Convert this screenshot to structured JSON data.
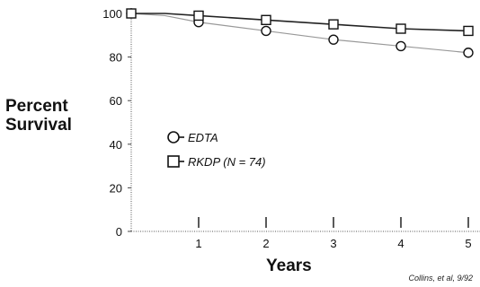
{
  "chart_data": {
    "type": "line",
    "title": "",
    "xlabel": "Years",
    "ylabel": "Percent Survival",
    "xlim": [
      0,
      5.5
    ],
    "ylim": [
      0,
      100
    ],
    "x_ticks": [
      1,
      2,
      3,
      4,
      5
    ],
    "y_ticks": [
      0,
      20,
      40,
      60,
      80,
      100
    ],
    "grid": false,
    "legend_position": "center-left",
    "series": [
      {
        "name": "EDTA",
        "marker": "circle",
        "color": "#999999",
        "x": [
          0,
          0.5,
          1,
          2,
          3,
          4,
          5
        ],
        "y": [
          100,
          99,
          96,
          92,
          88,
          85,
          82
        ]
      },
      {
        "name": "RKDP (N = 74)",
        "marker": "square",
        "color": "#222222",
        "x": [
          0,
          0.5,
          1,
          2,
          3,
          4,
          5
        ],
        "y": [
          100,
          100,
          99,
          97,
          95,
          93,
          92
        ]
      }
    ],
    "annotation": "Collins, et al, 9/92"
  }
}
